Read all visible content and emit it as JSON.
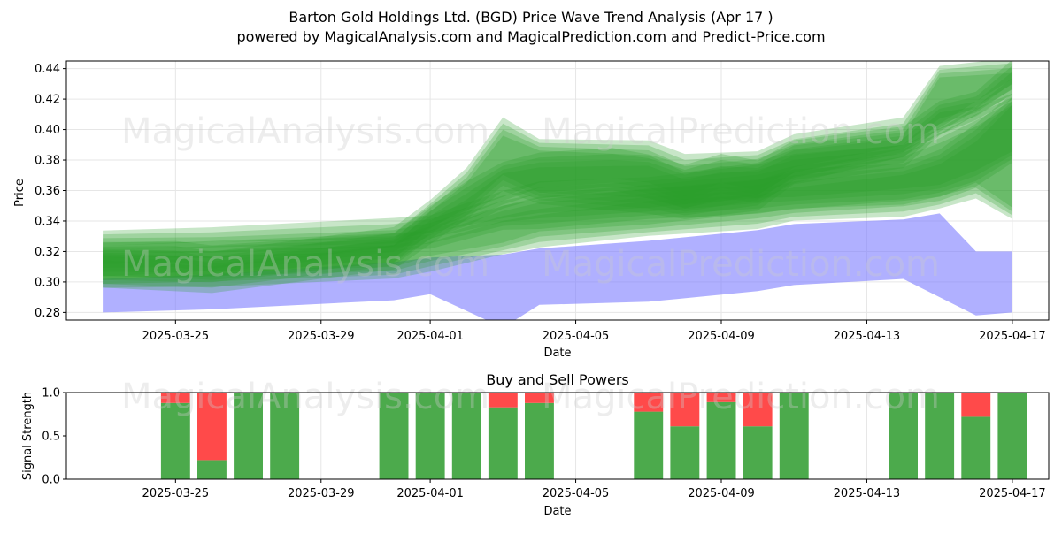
{
  "title": {
    "line1": "Barton Gold Holdings Ltd. (BGD) Price Wave Trend Analysis (Apr 17 )",
    "line2": "powered by MagicalAnalysis.com and MagicalPrediction.com and Predict-Price.com"
  },
  "watermarks": {
    "analysis": "MagicalAnalysis.com",
    "prediction": "MagicalPrediction.com"
  },
  "colors": {
    "green_wave": "#2ca02c",
    "blue_band": "#7b7bff",
    "buy": "#4caa4c",
    "sell": "#ff4a4a",
    "grid": "#e6e6e6"
  },
  "chart_data": [
    {
      "type": "area",
      "xlabel": "Date",
      "ylabel": "Price",
      "x_ticks": [
        "2025-03-25",
        "2025-03-29",
        "2025-04-01",
        "2025-04-05",
        "2025-04-09",
        "2025-04-13",
        "2025-04-17"
      ],
      "y_ticks": [
        "0.28",
        "0.30",
        "0.32",
        "0.34",
        "0.36",
        "0.38",
        "0.40",
        "0.42",
        "0.44"
      ],
      "ylim": [
        0.275,
        0.445
      ],
      "xlim": [
        "2025-03-22",
        "2025-04-18"
      ],
      "grid": true,
      "bands": [
        {
          "color": "blue",
          "x": [
            "2025-03-23",
            "2025-03-26",
            "2025-03-31",
            "2025-04-01",
            "2025-04-03",
            "2025-04-04",
            "2025-04-07",
            "2025-04-10",
            "2025-04-11",
            "2025-04-14",
            "2025-04-15",
            "2025-04-16",
            "2025-04-17"
          ],
          "upper": [
            0.302,
            0.305,
            0.313,
            0.316,
            0.318,
            0.322,
            0.327,
            0.334,
            0.338,
            0.341,
            0.345,
            0.32,
            0.32
          ],
          "lower": [
            0.28,
            0.282,
            0.288,
            0.292,
            0.27,
            0.285,
            0.287,
            0.294,
            0.298,
            0.302,
            0.29,
            0.278,
            0.28
          ]
        },
        {
          "color": "green",
          "x": [
            "2025-03-23",
            "2025-03-26",
            "2025-03-31",
            "2025-04-01",
            "2025-04-03",
            "2025-04-04",
            "2025-04-07",
            "2025-04-10",
            "2025-04-11",
            "2025-04-14",
            "2025-04-15",
            "2025-04-16",
            "2025-04-17"
          ],
          "upper": [
            0.33,
            0.331,
            0.336,
            0.34,
            0.355,
            0.36,
            0.365,
            0.372,
            0.378,
            0.386,
            0.396,
            0.408,
            0.42
          ],
          "lower": [
            0.32,
            0.321,
            0.324,
            0.327,
            0.338,
            0.34,
            0.345,
            0.35,
            0.352,
            0.356,
            0.36,
            0.368,
            0.382
          ]
        },
        {
          "color": "green",
          "x": [
            "2025-03-23",
            "2025-03-26",
            "2025-03-31",
            "2025-04-01",
            "2025-04-03",
            "2025-04-04",
            "2025-04-07",
            "2025-04-10",
            "2025-04-11",
            "2025-04-14",
            "2025-04-15",
            "2025-04-16",
            "2025-04-17"
          ],
          "upper": [
            0.32,
            0.322,
            0.326,
            0.33,
            0.345,
            0.35,
            0.357,
            0.362,
            0.368,
            0.374,
            0.382,
            0.398,
            0.42
          ],
          "lower": [
            0.3,
            0.302,
            0.306,
            0.312,
            0.322,
            0.328,
            0.334,
            0.34,
            0.344,
            0.348,
            0.352,
            0.36,
            0.345
          ]
        },
        {
          "color": "green",
          "x": [
            "2025-03-23",
            "2025-03-25",
            "2025-03-26",
            "2025-03-31",
            "2025-04-01",
            "2025-04-02",
            "2025-04-03",
            "2025-04-04",
            "2025-04-06",
            "2025-04-07",
            "2025-04-08",
            "2025-04-09",
            "2025-04-10",
            "2025-04-11",
            "2025-04-14",
            "2025-04-15",
            "2025-04-16",
            "2025-04-17"
          ],
          "upper": [
            0.322,
            0.322,
            0.318,
            0.328,
            0.345,
            0.36,
            0.375,
            0.38,
            0.382,
            0.38,
            0.372,
            0.378,
            0.376,
            0.388,
            0.396,
            0.415,
            0.42,
            0.44
          ],
          "lower": [
            0.308,
            0.308,
            0.305,
            0.318,
            0.332,
            0.342,
            0.352,
            0.36,
            0.364,
            0.36,
            0.352,
            0.36,
            0.356,
            0.37,
            0.386,
            0.402,
            0.41,
            0.425
          ]
        },
        {
          "color": "green",
          "x": [
            "2025-03-23",
            "2025-03-26",
            "2025-03-31",
            "2025-04-01",
            "2025-04-02",
            "2025-04-03",
            "2025-04-04",
            "2025-04-07",
            "2025-04-08",
            "2025-04-10",
            "2025-04-11",
            "2025-04-14",
            "2025-04-15",
            "2025-04-17"
          ],
          "upper": [
            0.318,
            0.315,
            0.33,
            0.35,
            0.37,
            0.402,
            0.39,
            0.388,
            0.378,
            0.382,
            0.392,
            0.402,
            0.438,
            0.442
          ],
          "lower": [
            0.3,
            0.298,
            0.312,
            0.33,
            0.345,
            0.365,
            0.355,
            0.35,
            0.345,
            0.352,
            0.368,
            0.38,
            0.4,
            0.428
          ]
        }
      ]
    },
    {
      "type": "bar",
      "title": "Buy and Sell Powers",
      "xlabel": "Date",
      "ylabel": "Signal Strength",
      "x_ticks": [
        "2025-03-25",
        "2025-03-29",
        "2025-04-01",
        "2025-04-05",
        "2025-04-09",
        "2025-04-13",
        "2025-04-17"
      ],
      "y_ticks": [
        "0.0",
        "0.5",
        "1.0"
      ],
      "ylim": [
        0,
        1
      ],
      "categories": [
        "2025-03-25",
        "2025-03-26",
        "2025-03-27",
        "2025-03-28",
        "2025-03-31",
        "2025-04-01",
        "2025-04-02",
        "2025-04-03",
        "2025-04-04",
        "2025-04-07",
        "2025-04-08",
        "2025-04-09",
        "2025-04-10",
        "2025-04-11",
        "2025-04-14",
        "2025-04-15",
        "2025-04-16",
        "2025-04-17"
      ],
      "series": [
        {
          "name": "Buy",
          "values": [
            0.88,
            0.22,
            1.0,
            1.0,
            1.0,
            1.0,
            1.0,
            0.83,
            0.88,
            0.78,
            0.61,
            0.89,
            0.61,
            1.0,
            1.0,
            1.0,
            0.72,
            1.0
          ]
        },
        {
          "name": "Sell",
          "values": [
            0.12,
            0.78,
            0.0,
            0.0,
            0.0,
            0.0,
            0.0,
            0.17,
            0.12,
            0.22,
            0.39,
            0.11,
            0.39,
            0.0,
            0.0,
            0.0,
            0.28,
            0.0
          ]
        }
      ]
    }
  ]
}
